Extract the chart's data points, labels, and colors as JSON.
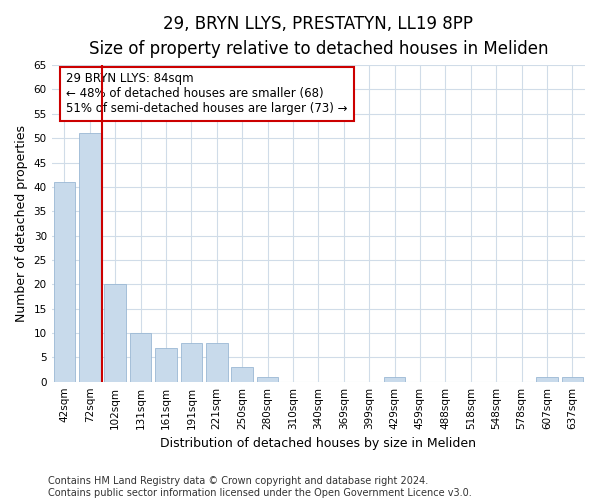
{
  "title1": "29, BRYN LLYS, PRESTATYN, LL19 8PP",
  "title2": "Size of property relative to detached houses in Meliden",
  "xlabel": "Distribution of detached houses by size in Meliden",
  "ylabel": "Number of detached properties",
  "categories": [
    "42sqm",
    "72sqm",
    "102sqm",
    "131sqm",
    "161sqm",
    "191sqm",
    "221sqm",
    "250sqm",
    "280sqm",
    "310sqm",
    "340sqm",
    "369sqm",
    "399sqm",
    "429sqm",
    "459sqm",
    "488sqm",
    "518sqm",
    "548sqm",
    "578sqm",
    "607sqm",
    "637sqm"
  ],
  "values": [
    41,
    51,
    20,
    10,
    7,
    8,
    8,
    3,
    1,
    0,
    0,
    0,
    0,
    1,
    0,
    0,
    0,
    0,
    0,
    1,
    1
  ],
  "bar_color": "#c8daeb",
  "bar_edge_color": "#9bb8d4",
  "highlight_line_color": "#cc0000",
  "annotation_line1": "29 BRYN LLYS: 84sqm",
  "annotation_line2": "← 48% of detached houses are smaller (68)",
  "annotation_line3": "51% of semi-detached houses are larger (73) →",
  "annotation_box_color": "#ffffff",
  "annotation_box_edge_color": "#cc0000",
  "ylim": [
    0,
    65
  ],
  "yticks": [
    0,
    5,
    10,
    15,
    20,
    25,
    30,
    35,
    40,
    45,
    50,
    55,
    60,
    65
  ],
  "footer1": "Contains HM Land Registry data © Crown copyright and database right 2024.",
  "footer2": "Contains public sector information licensed under the Open Government Licence v3.0.",
  "bg_color": "#ffffff",
  "plot_bg_color": "#ffffff",
  "grid_color": "#d0dce8",
  "title1_fontsize": 12,
  "title2_fontsize": 10,
  "axis_label_fontsize": 9,
  "tick_fontsize": 7.5,
  "annotation_fontsize": 8.5,
  "footer_fontsize": 7
}
